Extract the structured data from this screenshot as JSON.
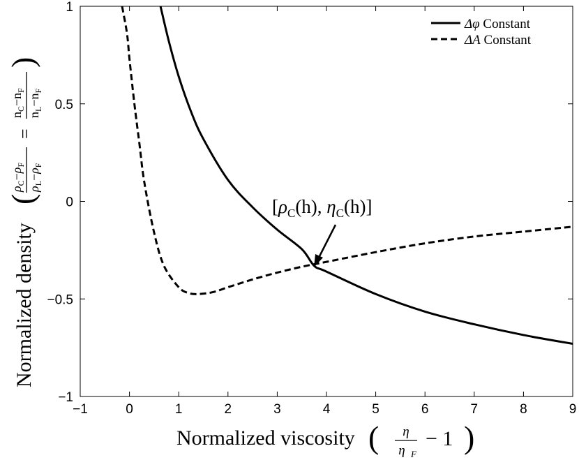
{
  "chart_data": {
    "type": "line",
    "xlabel": "Normalized viscosity",
    "xlabel_math_num": "η",
    "xlabel_math_den": "η",
    "xlabel_math_den_sub": "F",
    "xlabel_math_tail": "− 1",
    "ylabel": "Normalized density",
    "ylabel_math": {
      "rho": "ρ",
      "C": "C",
      "F": "F",
      "L": "L",
      "n": "n",
      "minus": "−",
      "equals": "="
    },
    "xlim": [
      -1,
      9
    ],
    "ylim": [
      -1,
      1
    ],
    "x_ticks": [
      -1,
      0,
      1,
      2,
      3,
      4,
      5,
      6,
      7,
      8,
      9
    ],
    "x_tick_labels": [
      "−1",
      "0",
      "1",
      "2",
      "3",
      "4",
      "5",
      "6",
      "7",
      "8",
      "9"
    ],
    "y_ticks": [
      -1,
      -0.5,
      0,
      0.5,
      1
    ],
    "y_tick_labels": [
      "−1",
      "−0.5",
      "0",
      "0.5",
      "1"
    ],
    "grid": false,
    "legend_position": "top-right",
    "series": [
      {
        "name": "Δφ Constant",
        "legend_symbol": "Δφ",
        "legend_rest": " Constant",
        "style": "solid",
        "x": [
          0.63,
          0.8,
          1.0,
          1.25,
          1.5,
          2.0,
          2.5,
          3.0,
          3.5,
          3.75,
          4.0,
          5.0,
          6.0,
          7.0,
          8.0,
          9.0
        ],
        "y": [
          1.0,
          0.82,
          0.64,
          0.46,
          0.32,
          0.11,
          -0.03,
          -0.145,
          -0.245,
          -0.33,
          -0.36,
          -0.475,
          -0.565,
          -0.63,
          -0.685,
          -0.73
        ]
      },
      {
        "name": "ΔA Constant",
        "legend_symbol": "ΔA",
        "legend_rest": " Constant",
        "style": "dashed",
        "x": [
          -0.15,
          -0.05,
          0.0,
          0.1,
          0.2,
          0.3,
          0.5,
          0.7,
          1.0,
          1.2,
          1.4,
          1.7,
          2.0,
          2.5,
          3.0,
          3.5,
          4.0,
          5.0,
          6.0,
          7.0,
          8.0,
          9.0
        ],
        "y": [
          1.0,
          0.86,
          0.73,
          0.5,
          0.3,
          0.1,
          -0.16,
          -0.33,
          -0.44,
          -0.47,
          -0.475,
          -0.465,
          -0.44,
          -0.4,
          -0.365,
          -0.335,
          -0.31,
          -0.26,
          -0.215,
          -0.18,
          -0.155,
          -0.13
        ]
      }
    ],
    "annotation": {
      "text_open": "[",
      "rho": "ρ",
      "C1": "C",
      "h1": "(h), ",
      "eta": "η",
      "C2": "C",
      "h2": "(h)",
      "text_close": "]",
      "point": [
        3.75,
        -0.33
      ]
    }
  }
}
